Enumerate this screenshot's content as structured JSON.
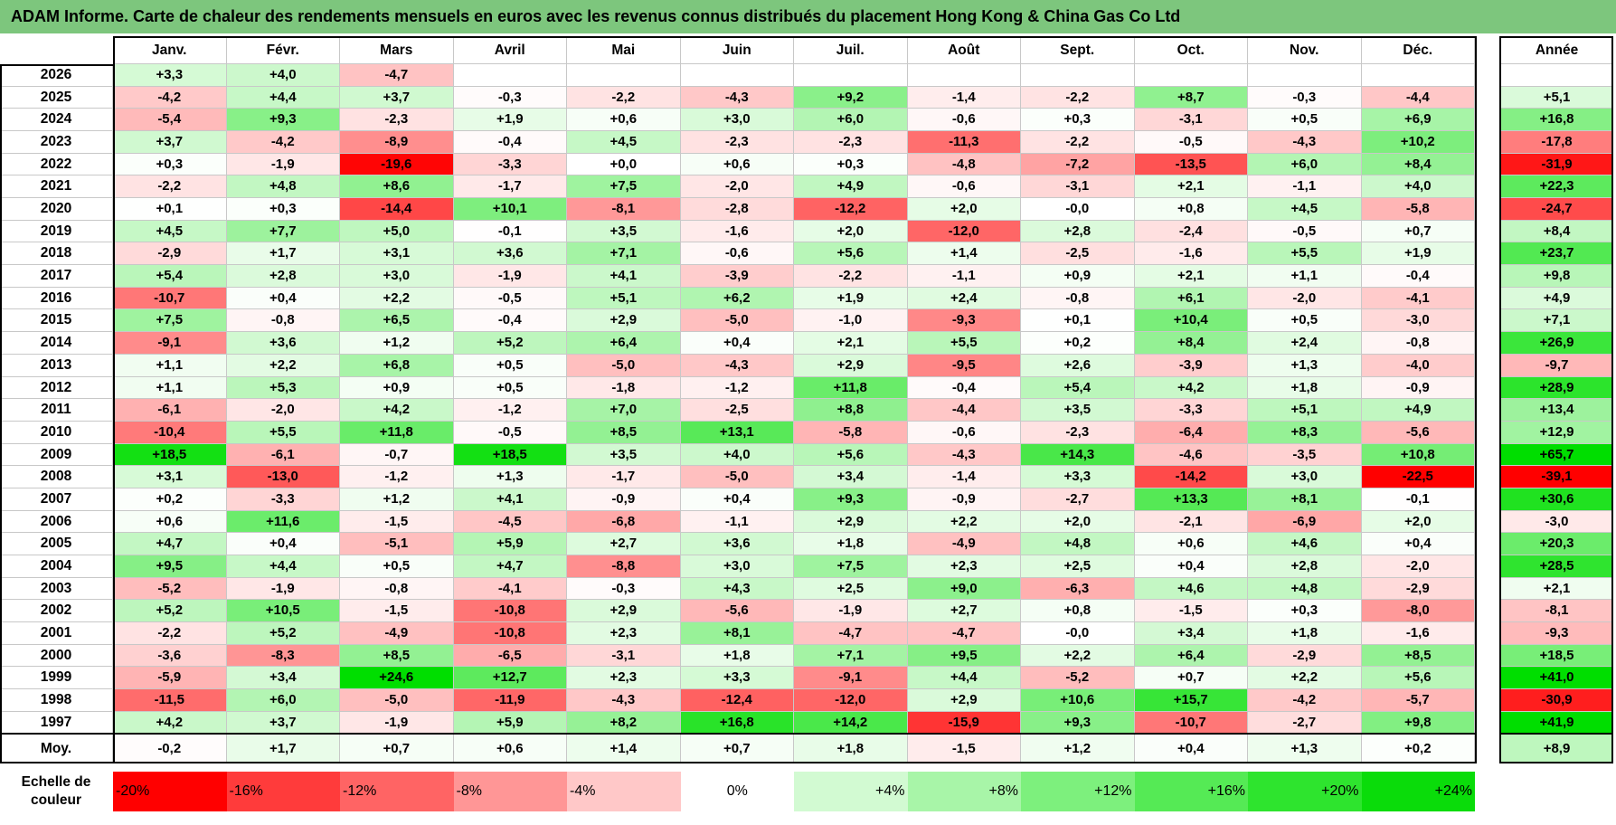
{
  "title": "ADAM Informe. Carte de chaleur des rendements mensuels en euros avec les revenus connus distribués du placement Hong Kong & China Gas Co Ltd",
  "chart_data": {
    "type": "heatmap",
    "title": "ADAM Informe. Carte de chaleur des rendements mensuels en euros avec les revenus connus distribués du placement Hong Kong & China Gas Co Ltd",
    "months": [
      "Janv.",
      "Févr.",
      "Mars",
      "Avril",
      "Mai",
      "Juin",
      "Juil.",
      "Août",
      "Sept.",
      "Oct.",
      "Nov.",
      "Déc."
    ],
    "year_header": "Année",
    "rows": [
      {
        "year": "2026",
        "months": [
          "+3,3",
          "+4,0",
          "-4,7",
          "",
          "",
          "",
          "",
          "",
          "",
          "",
          "",
          ""
        ],
        "annual": ""
      },
      {
        "year": "2025",
        "months": [
          "-4,2",
          "+4,4",
          "+3,7",
          "-0,3",
          "-2,2",
          "-4,3",
          "+9,2",
          "-1,4",
          "-2,2",
          "+8,7",
          "-0,3",
          "-4,4"
        ],
        "annual": "+5,1"
      },
      {
        "year": "2024",
        "months": [
          "-5,4",
          "+9,3",
          "-2,3",
          "+1,9",
          "+0,6",
          "+3,0",
          "+6,0",
          "-0,6",
          "+0,3",
          "-3,1",
          "+0,5",
          "+6,9"
        ],
        "annual": "+16,8"
      },
      {
        "year": "2023",
        "months": [
          "+3,7",
          "-4,2",
          "-8,9",
          "-0,4",
          "+4,5",
          "-2,3",
          "-2,3",
          "-11,3",
          "-2,2",
          "-0,5",
          "-4,3",
          "+10,2"
        ],
        "annual": "-17,8"
      },
      {
        "year": "2022",
        "months": [
          "+0,3",
          "-1,9",
          "-19,6",
          "-3,3",
          "+0,0",
          "+0,6",
          "+0,3",
          "-4,8",
          "-7,2",
          "-13,5",
          "+6,0",
          "+8,4"
        ],
        "annual": "-31,9"
      },
      {
        "year": "2021",
        "months": [
          "-2,2",
          "+4,8",
          "+8,6",
          "-1,7",
          "+7,5",
          "-2,0",
          "+4,9",
          "-0,6",
          "-3,1",
          "+2,1",
          "-1,1",
          "+4,0"
        ],
        "annual": "+22,3"
      },
      {
        "year": "2020",
        "months": [
          "+0,1",
          "+0,3",
          "-14,4",
          "+10,1",
          "-8,1",
          "-2,8",
          "-12,2",
          "+2,0",
          "-0,0",
          "+0,8",
          "+4,5",
          "-5,8"
        ],
        "annual": "-24,7"
      },
      {
        "year": "2019",
        "months": [
          "+4,5",
          "+7,7",
          "+5,0",
          "-0,1",
          "+3,5",
          "-1,6",
          "+2,0",
          "-12,0",
          "+2,8",
          "-2,4",
          "-0,5",
          "+0,7"
        ],
        "annual": "+8,4"
      },
      {
        "year": "2018",
        "months": [
          "-2,9",
          "+1,7",
          "+3,1",
          "+3,6",
          "+7,1",
          "-0,6",
          "+5,6",
          "+1,4",
          "-2,5",
          "-1,6",
          "+5,5",
          "+1,9"
        ],
        "annual": "+23,7"
      },
      {
        "year": "2017",
        "months": [
          "+5,4",
          "+2,8",
          "+3,0",
          "-1,9",
          "+4,1",
          "-3,9",
          "-2,2",
          "-1,1",
          "+0,9",
          "+2,1",
          "+1,1",
          "-0,4"
        ],
        "annual": "+9,8"
      },
      {
        "year": "2016",
        "months": [
          "-10,7",
          "+0,4",
          "+2,2",
          "-0,5",
          "+5,1",
          "+6,2",
          "+1,9",
          "+2,4",
          "-0,8",
          "+6,1",
          "-2,0",
          "-4,1"
        ],
        "annual": "+4,9"
      },
      {
        "year": "2015",
        "months": [
          "+7,5",
          "-0,8",
          "+6,5",
          "-0,4",
          "+2,9",
          "-5,0",
          "-1,0",
          "-9,3",
          "+0,1",
          "+10,4",
          "+0,5",
          "-3,0"
        ],
        "annual": "+7,1"
      },
      {
        "year": "2014",
        "months": [
          "-9,1",
          "+3,6",
          "+1,2",
          "+5,2",
          "+6,4",
          "+0,4",
          "+2,1",
          "+5,5",
          "+0,2",
          "+8,4",
          "+2,4",
          "-0,8"
        ],
        "annual": "+26,9"
      },
      {
        "year": "2013",
        "months": [
          "+1,1",
          "+2,2",
          "+6,8",
          "+0,5",
          "-5,0",
          "-4,3",
          "+2,9",
          "-9,5",
          "+2,6",
          "-3,9",
          "+1,3",
          "-4,0"
        ],
        "annual": "-9,7"
      },
      {
        "year": "2012",
        "months": [
          "+1,1",
          "+5,3",
          "+0,9",
          "+0,5",
          "-1,8",
          "-1,2",
          "+11,8",
          "-0,4",
          "+5,4",
          "+4,2",
          "+1,8",
          "-0,9"
        ],
        "annual": "+28,9"
      },
      {
        "year": "2011",
        "months": [
          "-6,1",
          "-2,0",
          "+4,2",
          "-1,2",
          "+7,0",
          "-2,5",
          "+8,8",
          "-4,4",
          "+3,5",
          "-3,3",
          "+5,1",
          "+4,9"
        ],
        "annual": "+13,4"
      },
      {
        "year": "2010",
        "months": [
          "-10,4",
          "+5,5",
          "+11,8",
          "-0,5",
          "+8,5",
          "+13,1",
          "-5,8",
          "-0,6",
          "-2,3",
          "-6,4",
          "+8,3",
          "-5,6"
        ],
        "annual": "+12,9"
      },
      {
        "year": "2009",
        "months": [
          "+18,5",
          "-6,1",
          "-0,7",
          "+18,5",
          "+3,5",
          "+4,0",
          "+5,6",
          "-4,3",
          "+14,3",
          "-4,6",
          "-3,5",
          "+10,8"
        ],
        "annual": "+65,7"
      },
      {
        "year": "2008",
        "months": [
          "+3,1",
          "-13,0",
          "-1,2",
          "+1,3",
          "-1,7",
          "-5,0",
          "+3,4",
          "-1,4",
          "+3,3",
          "-14,2",
          "+3,0",
          "-22,5"
        ],
        "annual": "-39,1"
      },
      {
        "year": "2007",
        "months": [
          "+0,2",
          "-3,3",
          "+1,2",
          "+4,1",
          "-0,9",
          "+0,4",
          "+9,3",
          "-0,9",
          "-2,7",
          "+13,3",
          "+8,1",
          "-0,1"
        ],
        "annual": "+30,6"
      },
      {
        "year": "2006",
        "months": [
          "+0,6",
          "+11,6",
          "-1,5",
          "-4,5",
          "-6,8",
          "-1,1",
          "+2,9",
          "+2,2",
          "+2,0",
          "-2,1",
          "-6,9",
          "+2,0"
        ],
        "annual": "-3,0"
      },
      {
        "year": "2005",
        "months": [
          "+4,7",
          "+0,4",
          "-5,1",
          "+5,9",
          "+2,7",
          "+3,6",
          "+1,8",
          "-4,9",
          "+4,8",
          "+0,6",
          "+4,6",
          "+0,4"
        ],
        "annual": "+20,3"
      },
      {
        "year": "2004",
        "months": [
          "+9,5",
          "+4,4",
          "+0,5",
          "+4,7",
          "-8,8",
          "+3,0",
          "+7,5",
          "+2,3",
          "+2,5",
          "+0,4",
          "+2,8",
          "-2,0"
        ],
        "annual": "+28,5"
      },
      {
        "year": "2003",
        "months": [
          "-5,2",
          "-1,9",
          "-0,8",
          "-4,1",
          "-0,3",
          "+4,3",
          "+2,5",
          "+9,0",
          "-6,3",
          "+4,6",
          "+4,8",
          "-2,9"
        ],
        "annual": "+2,1"
      },
      {
        "year": "2002",
        "months": [
          "+5,2",
          "+10,5",
          "-1,5",
          "-10,8",
          "+2,9",
          "-5,6",
          "-1,9",
          "+2,7",
          "+0,8",
          "-1,5",
          "+0,3",
          "-8,0"
        ],
        "annual": "-8,1"
      },
      {
        "year": "2001",
        "months": [
          "-2,2",
          "+5,2",
          "-4,9",
          "-10,8",
          "+2,3",
          "+8,1",
          "-4,7",
          "-4,7",
          "-0,0",
          "+3,4",
          "+1,8",
          "-1,6"
        ],
        "annual": "-9,3"
      },
      {
        "year": "2000",
        "months": [
          "-3,6",
          "-8,3",
          "+8,5",
          "-6,5",
          "-3,1",
          "+1,8",
          "+7,1",
          "+9,5",
          "+2,2",
          "+6,4",
          "-2,9",
          "+8,5"
        ],
        "annual": "+18,5"
      },
      {
        "year": "1999",
        "months": [
          "-5,9",
          "+3,4",
          "+24,6",
          "+12,7",
          "+2,3",
          "+3,3",
          "-9,1",
          "+4,4",
          "-5,2",
          "+0,7",
          "+2,2",
          "+5,6"
        ],
        "annual": "+41,0"
      },
      {
        "year": "1998",
        "months": [
          "-11,5",
          "+6,0",
          "-5,0",
          "-11,9",
          "-4,3",
          "-12,4",
          "-12,0",
          "+2,9",
          "+10,6",
          "+15,7",
          "-4,2",
          "-5,7"
        ],
        "annual": "-30,9"
      },
      {
        "year": "1997",
        "months": [
          "+4,2",
          "+3,7",
          "-1,9",
          "+5,9",
          "+8,2",
          "+16,8",
          "+14,2",
          "-15,9",
          "+9,3",
          "-10,7",
          "-2,7",
          "+9,8"
        ],
        "annual": "+41,9"
      }
    ],
    "average": {
      "label": "Moy.",
      "months": [
        "-0,2",
        "+1,7",
        "+0,7",
        "+0,6",
        "+1,4",
        "+0,7",
        "+1,8",
        "-1,5",
        "+1,2",
        "+0,4",
        "+1,3",
        "+0,2"
      ],
      "annual": "+8,9"
    },
    "scale": {
      "label_line1": "Echelle de",
      "label_line2": "couleur",
      "steps": [
        {
          "label": "-20%",
          "value": -20,
          "color": "#ff0000"
        },
        {
          "label": "-16%",
          "value": -16,
          "color": "#ff3b3b"
        },
        {
          "label": "-12%",
          "value": -12,
          "color": "#ff6464"
        },
        {
          "label": "-8%",
          "value": -8,
          "color": "#ff9696"
        },
        {
          "label": "-4%",
          "value": -4,
          "color": "#ffc8c8"
        },
        {
          "label": "0%",
          "value": 0,
          "color": "#ffffff"
        },
        {
          "label": "+4%",
          "value": 4,
          "color": "#d2fad2"
        },
        {
          "label": "+8%",
          "value": 8,
          "color": "#a8f5a8"
        },
        {
          "label": "+12%",
          "value": 12,
          "color": "#7df07d"
        },
        {
          "label": "+16%",
          "value": 16,
          "color": "#55ea55"
        },
        {
          "label": "+20%",
          "value": 20,
          "color": "#2ee42e"
        },
        {
          "label": "+24%",
          "value": 24,
          "color": "#0adc0a"
        }
      ]
    },
    "colors": {
      "negative_max": "#ff0000",
      "neutral": "#ffffff",
      "positive_max": "#00dc00",
      "title_bar": "#7dc67d"
    }
  }
}
